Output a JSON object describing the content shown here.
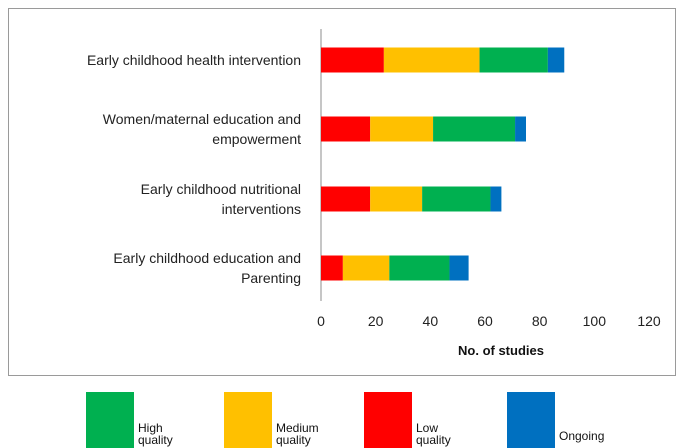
{
  "chart_data": {
    "type": "bar",
    "orientation": "horizontal",
    "stacked": true,
    "categories": [
      "Early childhood health intervention",
      "Women/maternal education and empowerment",
      "Early childhood nutritional interventions",
      "Early childhood education and Parenting"
    ],
    "category_lines": [
      [
        "Early childhood health intervention"
      ],
      [
        "Women/maternal education and",
        "empowerment"
      ],
      [
        "Early childhood nutritional",
        "interventions"
      ],
      [
        "Early childhood education and",
        "Parenting"
      ]
    ],
    "series": [
      {
        "name": "Low quality",
        "color": "#ff0000",
        "values": [
          23,
          18,
          18,
          8
        ]
      },
      {
        "name": "Medium quality",
        "color": "#ffc000",
        "values": [
          35,
          23,
          19,
          17
        ]
      },
      {
        "name": "High quality",
        "color": "#00b050",
        "values": [
          25,
          30,
          25,
          22
        ]
      },
      {
        "name": "Ongoing",
        "color": "#0070c0",
        "values": [
          6,
          4,
          4,
          7
        ]
      }
    ],
    "xlabel": "No. of studies",
    "xlim": [
      0,
      120
    ],
    "xticks": [
      0,
      20,
      40,
      60,
      80,
      100,
      120
    ],
    "grid": false
  },
  "legend": {
    "items": [
      {
        "series": "High quality",
        "lines": [
          "High",
          "quality"
        ],
        "color": "#00b050"
      },
      {
        "series": "Medium quality",
        "lines": [
          "Medium",
          "quality"
        ],
        "color": "#ffc000"
      },
      {
        "series": "Low quality",
        "lines": [
          "Low",
          "quality"
        ],
        "color": "#ff0000"
      },
      {
        "series": "Ongoing",
        "lines": [
          "Ongoing"
        ],
        "color": "#0070c0"
      }
    ]
  }
}
